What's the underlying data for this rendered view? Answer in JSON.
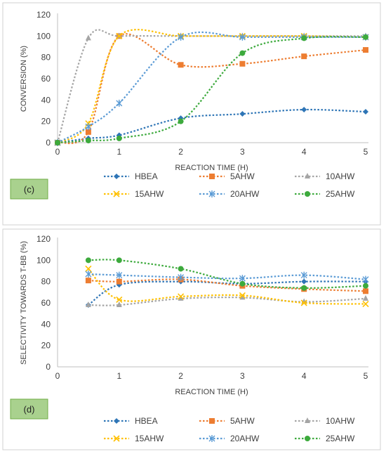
{
  "chart_data": [
    {
      "type": "line",
      "panel_label": "(c)",
      "xlabel": "REACTION TIME (H)",
      "ylabel": "CONVERSION (%)",
      "xlim": [
        0,
        5
      ],
      "ylim": [
        0,
        120
      ],
      "xticks": [
        0,
        1,
        2,
        3,
        4,
        5
      ],
      "yticks": [
        0,
        20,
        40,
        60,
        80,
        100,
        120
      ],
      "grid": false,
      "legend_position": "bottom",
      "series": [
        {
          "name": "HBEA",
          "color": "#2E75B6",
          "marker": "diamond",
          "x": [
            0,
            0.5,
            1,
            2,
            3,
            4,
            5
          ],
          "y": [
            0,
            4,
            7,
            23,
            27,
            31,
            29
          ]
        },
        {
          "name": "5AHW",
          "color": "#ED7D31",
          "marker": "square",
          "x": [
            0,
            0.5,
            1,
            2,
            3,
            4,
            5
          ],
          "y": [
            0,
            10,
            100,
            73,
            74,
            81,
            87
          ]
        },
        {
          "name": "10AHW",
          "color": "#A5A5A5",
          "marker": "triangle",
          "x": [
            0,
            0.5,
            1,
            2,
            3,
            4,
            5
          ],
          "y": [
            0,
            98,
            100,
            100,
            100,
            100,
            100
          ]
        },
        {
          "name": "15AHW",
          "color": "#FFC000",
          "marker": "x",
          "x": [
            0,
            0.5,
            1,
            2,
            3,
            4,
            5
          ],
          "y": [
            0,
            18,
            100,
            100,
            100,
            100,
            99
          ]
        },
        {
          "name": "20AHW",
          "color": "#5B9BD5",
          "marker": "asterisk",
          "x": [
            0,
            0.5,
            1,
            2,
            3,
            4,
            5
          ],
          "y": [
            0,
            15,
            37,
            99,
            99,
            99,
            99
          ]
        },
        {
          "name": "25AHW",
          "color": "#3DAA3D",
          "marker": "circle",
          "x": [
            0,
            0.5,
            1,
            2,
            3,
            4,
            5
          ],
          "y": [
            0,
            2,
            4,
            20,
            84,
            98,
            99
          ]
        }
      ]
    },
    {
      "type": "line",
      "panel_label": "(d)",
      "xlabel": "REACTION TIME (H)",
      "ylabel": "SELECTIVITY TOWARDS T-BB (%)",
      "xlim": [
        0,
        5
      ],
      "ylim": [
        0,
        120
      ],
      "xticks": [
        0,
        1,
        2,
        3,
        4,
        5
      ],
      "yticks": [
        0,
        20,
        40,
        60,
        80,
        100,
        120
      ],
      "grid": false,
      "legend_position": "bottom",
      "series": [
        {
          "name": "HBEA",
          "color": "#2E75B6",
          "marker": "diamond",
          "x": [
            0.5,
            1,
            2,
            3,
            4,
            5
          ],
          "y": [
            58,
            77,
            80,
            78,
            80,
            80
          ]
        },
        {
          "name": "5AHW",
          "color": "#ED7D31",
          "marker": "square",
          "x": [
            0.5,
            1,
            2,
            3,
            4,
            5
          ],
          "y": [
            81,
            80,
            82,
            76,
            73,
            71
          ]
        },
        {
          "name": "10AHW",
          "color": "#A5A5A5",
          "marker": "triangle",
          "x": [
            0.5,
            1,
            2,
            3,
            4,
            5
          ],
          "y": [
            58,
            58,
            64,
            65,
            61,
            64
          ]
        },
        {
          "name": "15AHW",
          "color": "#FFC000",
          "marker": "x",
          "x": [
            0.5,
            1,
            2,
            3,
            4,
            5
          ],
          "y": [
            92,
            63,
            66,
            67,
            60,
            59
          ]
        },
        {
          "name": "20AHW",
          "color": "#5B9BD5",
          "marker": "asterisk",
          "x": [
            0.5,
            1,
            2,
            3,
            4,
            5
          ],
          "y": [
            87,
            86,
            84,
            83,
            86,
            82
          ]
        },
        {
          "name": "25AHW",
          "color": "#3DAA3D",
          "marker": "circle",
          "x": [
            0.5,
            1,
            2,
            3,
            4,
            5
          ],
          "y": [
            100,
            100,
            92,
            78,
            74,
            76
          ]
        }
      ]
    }
  ]
}
